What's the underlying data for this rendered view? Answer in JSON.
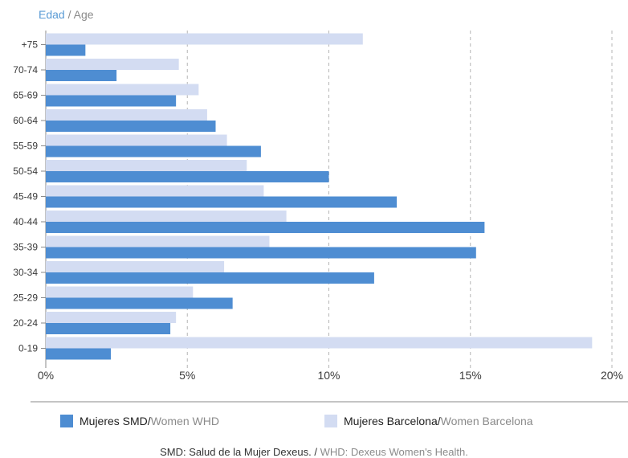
{
  "axis_title": {
    "es": "Edad",
    "sep": " / ",
    "en": "Age"
  },
  "legend": [
    {
      "es": "Mujeres SMD",
      "sep": " / ",
      "en": "Women WHD",
      "color": "#4e8dd2"
    },
    {
      "es": "Mujeres Barcelona",
      "sep": " / ",
      "en": "Women Barcelona",
      "color": "#d3dcf2"
    }
  ],
  "note": {
    "es": "SMD: Salud de la Mujer Dexeus.",
    "sep": " / ",
    "en": "WHD: Dexeus Women's Health."
  },
  "colors": {
    "smd": "#4e8dd2",
    "barcelona": "#d3dcf2",
    "grid": "#b5b5b5",
    "axis": "#8a8a8a",
    "title_es": "#5a9bd5",
    "text": "#3a3a3a"
  },
  "chart_data": {
    "type": "bar",
    "orientation": "horizontal",
    "categories": [
      "+75",
      "70-74",
      "65-69",
      "60-64",
      "55-59",
      "50-54",
      "45-49",
      "40-44",
      "35-39",
      "30-34",
      "25-29",
      "20-24",
      "0-19"
    ],
    "series": [
      {
        "name": "Mujeres Barcelona / Women Barcelona",
        "values": [
          11.2,
          4.7,
          5.4,
          5.7,
          6.4,
          7.1,
          7.7,
          8.5,
          7.9,
          6.3,
          5.2,
          4.6,
          19.3
        ]
      },
      {
        "name": "Mujeres SMD / Women WHD",
        "values": [
          1.4,
          2.5,
          4.6,
          6.0,
          7.6,
          10.0,
          12.4,
          15.5,
          15.2,
          11.6,
          6.6,
          4.4,
          2.3
        ]
      }
    ],
    "xlim": [
      0,
      20
    ],
    "xticks": [
      0,
      5,
      10,
      15,
      20
    ],
    "xtick_labels": [
      "0%",
      "5%",
      "10%",
      "15%",
      "20%"
    ],
    "ylabel": "Edad / Age",
    "xlabel": "",
    "grid": "vertical dashed",
    "legend_position": "bottom"
  }
}
